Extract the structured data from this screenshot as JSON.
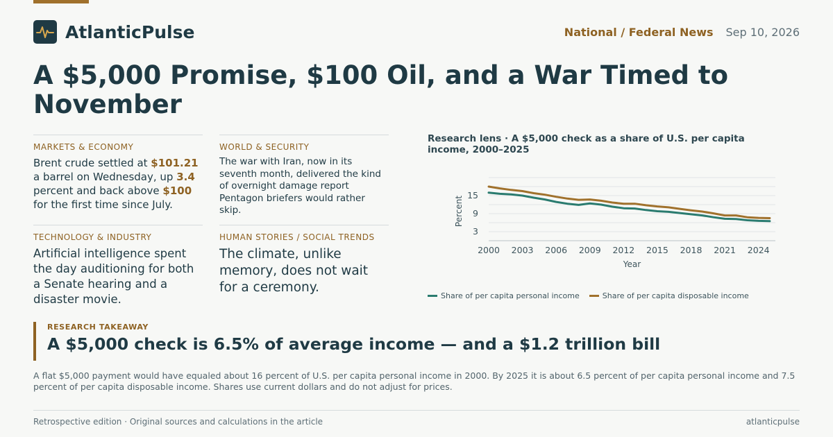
{
  "brand": {
    "name": "AtlanticPulse",
    "logo_icon": "pulse-icon"
  },
  "header": {
    "section": "National / Federal News",
    "date": "Sep 10, 2026"
  },
  "headline": "A $5,000 Promise, $100 Oil, and a War Timed to November",
  "cells": {
    "markets": {
      "kicker": "MARKETS & ECONOMY",
      "t1": "Brent crude settled at ",
      "v1": "$101.21",
      "t2": " a barrel on Wednesday, up ",
      "v2": "3.4",
      "t3": " percent and back above ",
      "v3": "$100",
      "t4": " for the first time since July."
    },
    "world": {
      "kicker": "WORLD & SECURITY",
      "text": "The war with Iran, now in its seventh month, delivered the kind of overnight damage report Pentagon briefers would rather skip."
    },
    "tech": {
      "kicker": "TECHNOLOGY & INDUSTRY",
      "text": "Artificial intelligence spent the day auditioning for both a Senate hearing and a disaster movie."
    },
    "human": {
      "kicker": "HUMAN STORIES / SOCIAL TRENDS",
      "text": "The climate, unlike memory, does not wait for a ceremony."
    }
  },
  "chart_title": "Research lens · A $5,000 check as a share of U.S. per capita income, 2000–2025",
  "chart_data": {
    "type": "line",
    "x": [
      2000,
      2001,
      2002,
      2003,
      2004,
      2005,
      2006,
      2007,
      2008,
      2009,
      2010,
      2011,
      2012,
      2013,
      2014,
      2015,
      2016,
      2017,
      2018,
      2019,
      2020,
      2021,
      2022,
      2023,
      2024,
      2025
    ],
    "series": [
      {
        "name": "Share of per capita personal income",
        "color": "#2a7b6f",
        "values": [
          16.0,
          15.6,
          15.4,
          15.0,
          14.3,
          13.7,
          12.9,
          12.3,
          11.9,
          12.4,
          12.0,
          11.3,
          10.8,
          10.7,
          10.2,
          9.8,
          9.6,
          9.2,
          8.8,
          8.4,
          7.8,
          7.3,
          7.2,
          6.8,
          6.6,
          6.5
        ]
      },
      {
        "name": "Share of per capita disposable income",
        "color": "#a0712c",
        "values": [
          18.0,
          17.4,
          16.9,
          16.5,
          15.8,
          15.3,
          14.6,
          14.0,
          13.6,
          13.7,
          13.3,
          12.7,
          12.3,
          12.3,
          11.8,
          11.4,
          11.1,
          10.6,
          10.1,
          9.7,
          9.1,
          8.4,
          8.4,
          7.8,
          7.6,
          7.5
        ]
      }
    ],
    "xlabel": "Year",
    "ylabel": "Percent",
    "x_ticks": [
      "2000",
      "2003",
      "2006",
      "2009",
      "2012",
      "2015",
      "2018",
      "2021",
      "2024"
    ],
    "y_ticks": [
      "3",
      "9",
      "15"
    ],
    "xlim": [
      2000,
      2025.5
    ],
    "ylim": [
      0,
      21
    ],
    "grid": true,
    "legend": "bottom"
  },
  "takeaway": {
    "kicker": "RESEARCH TAKEAWAY",
    "headline": "A $5,000 check is 6.5% of average income — and a $1.2 trillion bill"
  },
  "explainer": "A flat $5,000 payment would have equaled about 16 percent of U.S. per capita personal income in 2000. By 2025 it is about 6.5 percent of per capita personal income and 7.5 percent of per capita disposable income. Shares use current dollars and do not adjust for prices.",
  "footer": {
    "left": "Retrospective edition · Original sources and calculations in the article",
    "right": "atlanticpulse"
  }
}
